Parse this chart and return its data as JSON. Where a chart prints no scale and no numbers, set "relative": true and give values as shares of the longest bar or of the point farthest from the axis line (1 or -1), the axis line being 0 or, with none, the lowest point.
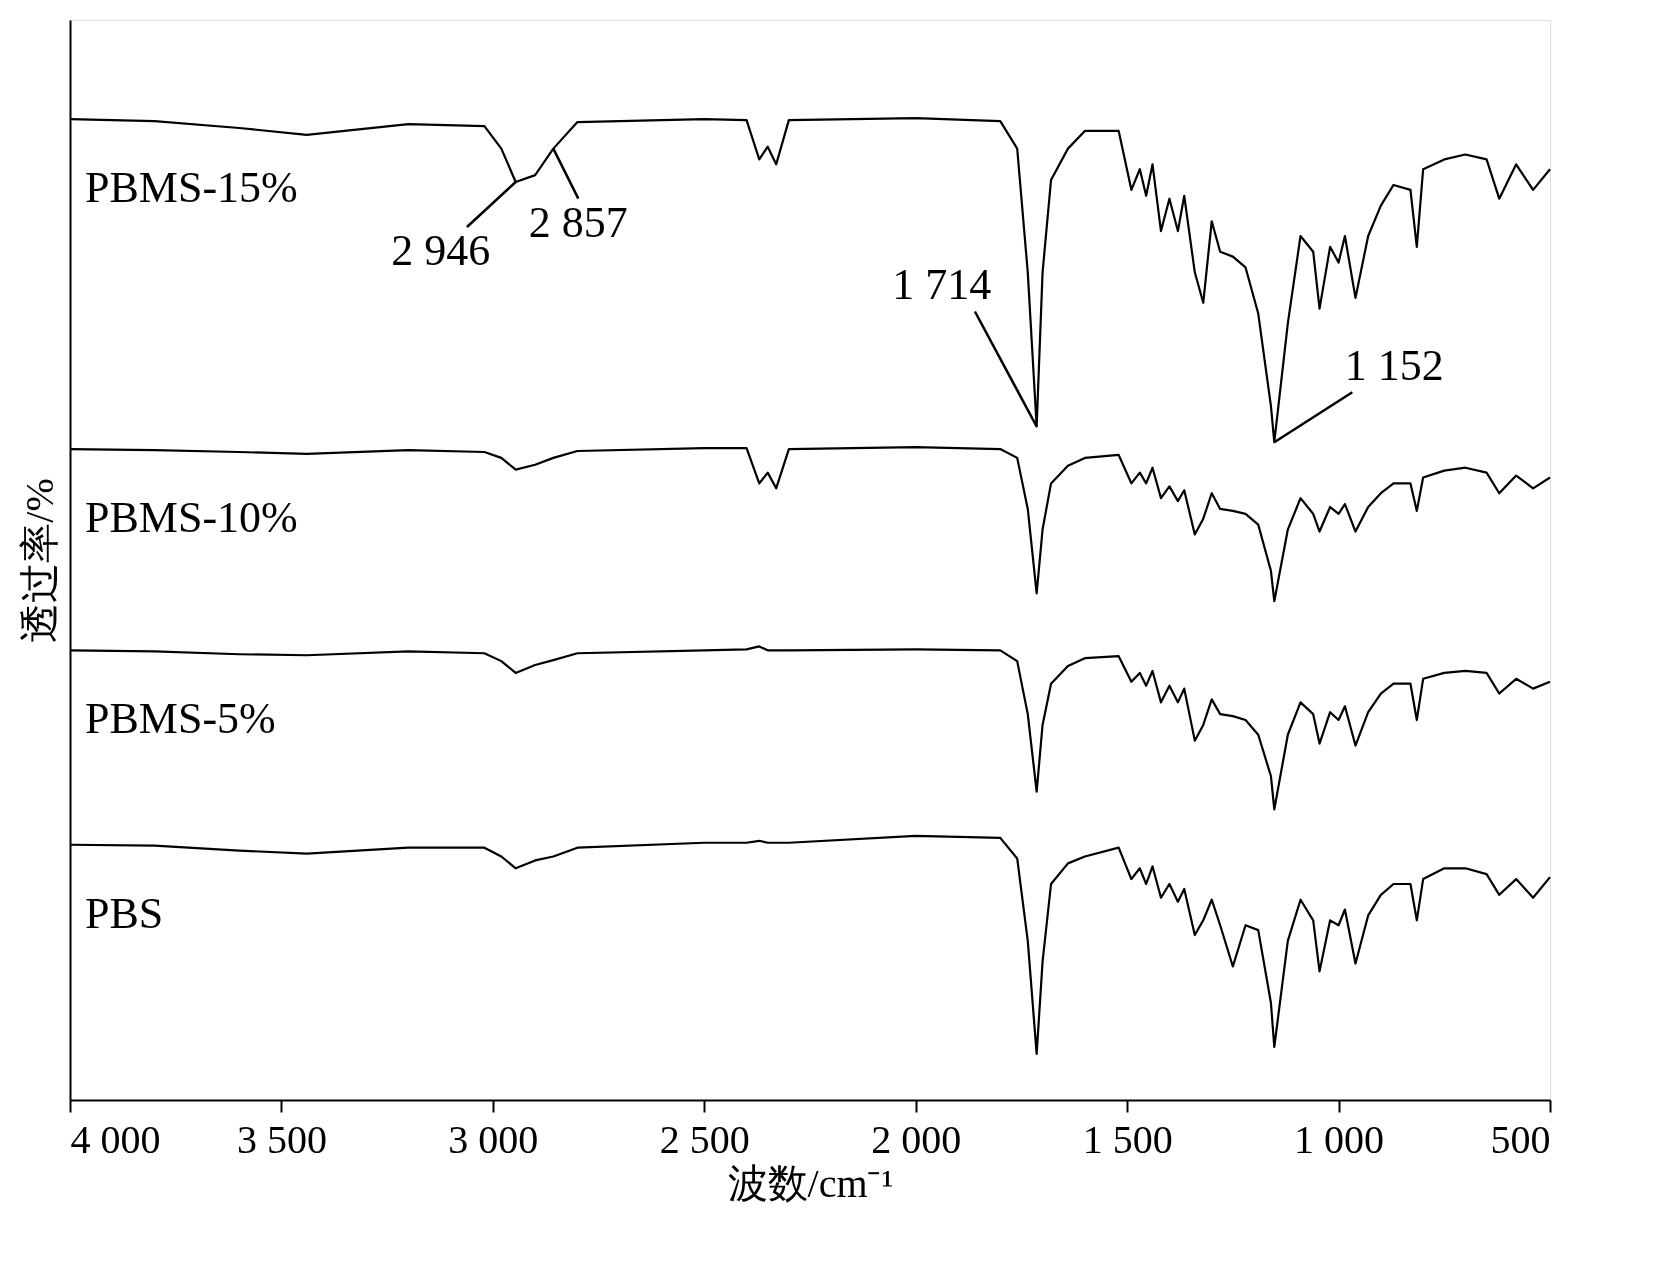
{
  "chart_data": {
    "type": "line",
    "relative": true,
    "xlabel": "波数/cm⁻¹",
    "ylabel": "透过率/%",
    "xlim": [
      4000,
      500
    ],
    "xticks": [
      {
        "value": 4000,
        "label": "4 000"
      },
      {
        "value": 3500,
        "label": "3 500"
      },
      {
        "value": 3000,
        "label": "3 000"
      },
      {
        "value": 2500,
        "label": "2 500"
      },
      {
        "value": 2000,
        "label": "2 000"
      },
      {
        "value": 1500,
        "label": "1 500"
      },
      {
        "value": 1000,
        "label": "1 000"
      },
      500
    ],
    "grid": false,
    "marker": "none",
    "line_style": "solid",
    "x": [
      4000,
      3800,
      3600,
      3440,
      3200,
      3020,
      2980,
      2946,
      2900,
      2857,
      2800,
      2500,
      2400,
      2370,
      2350,
      2330,
      2300,
      2000,
      1800,
      1760,
      1735,
      1714,
      1700,
      1680,
      1640,
      1600,
      1520,
      1490,
      1470,
      1455,
      1440,
      1420,
      1400,
      1380,
      1365,
      1340,
      1320,
      1300,
      1280,
      1250,
      1220,
      1190,
      1160,
      1152,
      1120,
      1090,
      1060,
      1045,
      1020,
      1000,
      985,
      960,
      930,
      900,
      870,
      830,
      815,
      800,
      750,
      700,
      650,
      620,
      580,
      540,
      500
    ],
    "series": [
      {
        "name": "PBMS-15%",
        "color": "#000000",
        "values": [
          0.999,
          0.997,
          0.99,
          0.983,
          0.994,
          0.992,
          0.969,
          0.935,
          0.942,
          0.969,
          0.996,
          0.999,
          0.998,
          0.958,
          0.971,
          0.953,
          0.998,
          1.0,
          0.997,
          0.969,
          0.843,
          0.686,
          0.843,
          0.937,
          0.969,
          0.987,
          0.987,
          0.927,
          0.948,
          0.921,
          0.953,
          0.885,
          0.918,
          0.885,
          0.921,
          0.843,
          0.812,
          0.895,
          0.864,
          0.859,
          0.848,
          0.801,
          0.707,
          0.67,
          0.791,
          0.88,
          0.864,
          0.806,
          0.869,
          0.853,
          0.88,
          0.817,
          0.88,
          0.911,
          0.932,
          0.927,
          0.869,
          0.948,
          0.958,
          0.963,
          0.958,
          0.918,
          0.953,
          0.927,
          0.948
        ]
      },
      {
        "name": "PBMS-10%",
        "color": "#000000",
        "values": [
          0.663,
          0.662,
          0.66,
          0.658,
          0.662,
          0.66,
          0.654,
          0.642,
          0.647,
          0.654,
          0.661,
          0.664,
          0.664,
          0.628,
          0.639,
          0.623,
          0.663,
          0.665,
          0.663,
          0.654,
          0.602,
          0.516,
          0.581,
          0.628,
          0.646,
          0.654,
          0.657,
          0.628,
          0.639,
          0.628,
          0.644,
          0.613,
          0.625,
          0.61,
          0.621,
          0.576,
          0.592,
          0.618,
          0.602,
          0.6,
          0.597,
          0.586,
          0.539,
          0.508,
          0.581,
          0.613,
          0.597,
          0.579,
          0.604,
          0.597,
          0.607,
          0.579,
          0.604,
          0.618,
          0.628,
          0.628,
          0.6,
          0.634,
          0.641,
          0.644,
          0.639,
          0.618,
          0.636,
          0.623,
          0.634
        ]
      },
      {
        "name": "PBMS-5%",
        "color": "#000000",
        "values": [
          0.458,
          0.457,
          0.454,
          0.453,
          0.457,
          0.455,
          0.447,
          0.435,
          0.443,
          0.448,
          0.455,
          0.458,
          0.459,
          0.462,
          0.458,
          0.458,
          0.458,
          0.459,
          0.458,
          0.447,
          0.393,
          0.314,
          0.382,
          0.424,
          0.442,
          0.45,
          0.452,
          0.426,
          0.435,
          0.422,
          0.437,
          0.405,
          0.422,
          0.405,
          0.419,
          0.366,
          0.382,
          0.408,
          0.393,
          0.391,
          0.387,
          0.372,
          0.33,
          0.296,
          0.372,
          0.405,
          0.393,
          0.363,
          0.395,
          0.387,
          0.401,
          0.361,
          0.395,
          0.414,
          0.424,
          0.424,
          0.387,
          0.429,
          0.435,
          0.437,
          0.435,
          0.414,
          0.429,
          0.419,
          0.426
        ]
      },
      {
        "name": "PBS",
        "color": "#000000",
        "values": [
          0.26,
          0.259,
          0.254,
          0.251,
          0.257,
          0.257,
          0.248,
          0.236,
          0.244,
          0.248,
          0.257,
          0.262,
          0.262,
          0.264,
          0.262,
          0.262,
          0.262,
          0.269,
          0.267,
          0.246,
          0.162,
          0.047,
          0.141,
          0.22,
          0.241,
          0.248,
          0.257,
          0.225,
          0.236,
          0.22,
          0.238,
          0.206,
          0.22,
          0.202,
          0.215,
          0.168,
          0.183,
          0.204,
          0.178,
          0.136,
          0.178,
          0.173,
          0.099,
          0.054,
          0.162,
          0.204,
          0.183,
          0.131,
          0.183,
          0.178,
          0.194,
          0.139,
          0.188,
          0.209,
          0.22,
          0.22,
          0.183,
          0.225,
          0.236,
          0.236,
          0.23,
          0.209,
          0.225,
          0.206,
          0.227
        ]
      }
    ],
    "annotations": [
      {
        "text": "2 946",
        "x": 2946,
        "y": 0.935
      },
      {
        "text": "2 857",
        "x": 2857,
        "y": 0.969
      },
      {
        "text": "1 714",
        "x": 1714,
        "y": 0.686
      },
      {
        "text": "1 152",
        "x": 1152,
        "y": 0.67
      }
    ]
  }
}
